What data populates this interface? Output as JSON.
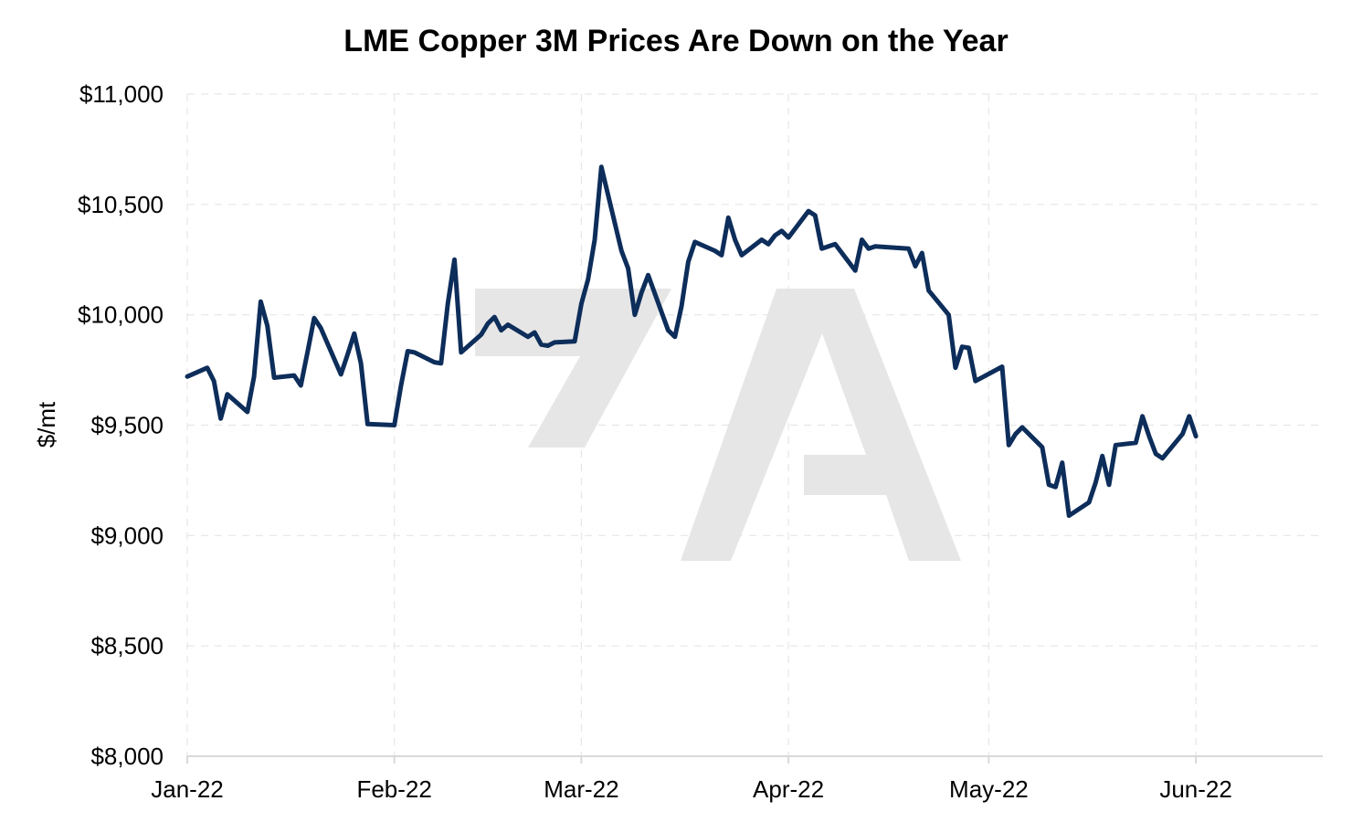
{
  "chart_data": {
    "type": "line",
    "title": "LME Copper 3M Prices Are Down on the Year",
    "ylabel": "$/mt",
    "xlabel": "",
    "ylim": [
      8000,
      11000
    ],
    "xlim": [
      "2022-01-01",
      "2022-06-20"
    ],
    "y_ticks": [
      "$8,000",
      "$8,500",
      "$9,000",
      "$9,500",
      "$10,000",
      "$10,500",
      "$11,000"
    ],
    "y_tick_values": [
      8000,
      8500,
      9000,
      9500,
      10000,
      10500,
      11000
    ],
    "x_ticks": [
      {
        "label": "Jan-22",
        "date": "2022-01-01"
      },
      {
        "label": "Feb-22",
        "date": "2022-02-01"
      },
      {
        "label": "Mar-22",
        "date": "2022-03-01"
      },
      {
        "label": "Apr-22",
        "date": "2022-04-01"
      },
      {
        "label": "May-22",
        "date": "2022-05-01"
      },
      {
        "label": "Jun-22",
        "date": "2022-06-01"
      }
    ],
    "grid": true,
    "colors": {
      "line": "#0d2d5a",
      "watermark": "#e6e6e6"
    },
    "series": [
      {
        "x": [
          "2022-01-01",
          "2022-01-04",
          "2022-01-05",
          "2022-01-06",
          "2022-01-07",
          "2022-01-10",
          "2022-01-11",
          "2022-01-12",
          "2022-01-13",
          "2022-01-14",
          "2022-01-17",
          "2022-01-18",
          "2022-01-19",
          "2022-01-20",
          "2022-01-21",
          "2022-01-24",
          "2022-01-25",
          "2022-01-26",
          "2022-01-27",
          "2022-01-28",
          "2022-02-01",
          "2022-02-02",
          "2022-02-03",
          "2022-02-04",
          "2022-02-07",
          "2022-02-08",
          "2022-02-09",
          "2022-02-10",
          "2022-02-11",
          "2022-02-14",
          "2022-02-15",
          "2022-02-16",
          "2022-02-17",
          "2022-02-18",
          "2022-02-21",
          "2022-02-22",
          "2022-02-23",
          "2022-02-24",
          "2022-02-25",
          "2022-02-28",
          "2022-03-01",
          "2022-03-02",
          "2022-03-03",
          "2022-03-04",
          "2022-03-07",
          "2022-03-08",
          "2022-03-09",
          "2022-03-10",
          "2022-03-11",
          "2022-03-14",
          "2022-03-15",
          "2022-03-16",
          "2022-03-17",
          "2022-03-18",
          "2022-03-21",
          "2022-03-22",
          "2022-03-23",
          "2022-03-24",
          "2022-03-25",
          "2022-03-28",
          "2022-03-29",
          "2022-03-30",
          "2022-03-31",
          "2022-04-01",
          "2022-04-04",
          "2022-04-05",
          "2022-04-06",
          "2022-04-07",
          "2022-04-08",
          "2022-04-11",
          "2022-04-12",
          "2022-04-13",
          "2022-04-14",
          "2022-04-19",
          "2022-04-20",
          "2022-04-21",
          "2022-04-22",
          "2022-04-25",
          "2022-04-26",
          "2022-04-27",
          "2022-04-28",
          "2022-04-29",
          "2022-05-03",
          "2022-05-04",
          "2022-05-05",
          "2022-05-06",
          "2022-05-09",
          "2022-05-10",
          "2022-05-11",
          "2022-05-12",
          "2022-05-13",
          "2022-05-16",
          "2022-05-17",
          "2022-05-18",
          "2022-05-19",
          "2022-05-20",
          "2022-05-23",
          "2022-05-24",
          "2022-05-25",
          "2022-05-26",
          "2022-05-27",
          "2022-05-30",
          "2022-05-31",
          "2022-06-01"
        ],
        "values": [
          9720,
          9760,
          9700,
          9530,
          9640,
          9560,
          9720,
          10060,
          9950,
          9715,
          9725,
          9680,
          9830,
          9985,
          9940,
          9730,
          9820,
          9915,
          9780,
          9505,
          9500,
          9680,
          9835,
          9830,
          9785,
          9780,
          10050,
          10250,
          9830,
          9910,
          9960,
          9990,
          9930,
          9955,
          9900,
          9920,
          9865,
          9860,
          9875,
          9880,
          10050,
          10160,
          10340,
          10670,
          10290,
          10210,
          10000,
          10100,
          10180,
          9930,
          9900,
          10040,
          10240,
          10330,
          10290,
          10270,
          10440,
          10340,
          10270,
          10340,
          10320,
          10360,
          10380,
          10350,
          10470,
          10450,
          10300,
          10310,
          10320,
          10200,
          10340,
          10300,
          10310,
          10300,
          10220,
          10280,
          10110,
          10000,
          9760,
          9855,
          9850,
          9700,
          9765,
          9410,
          9460,
          9490,
          9400,
          9230,
          9220,
          9330,
          9090,
          9150,
          9240,
          9360,
          9230,
          9410,
          9420,
          9540,
          9450,
          9370,
          9350,
          9460,
          9540,
          9450
        ]
      }
    ]
  }
}
